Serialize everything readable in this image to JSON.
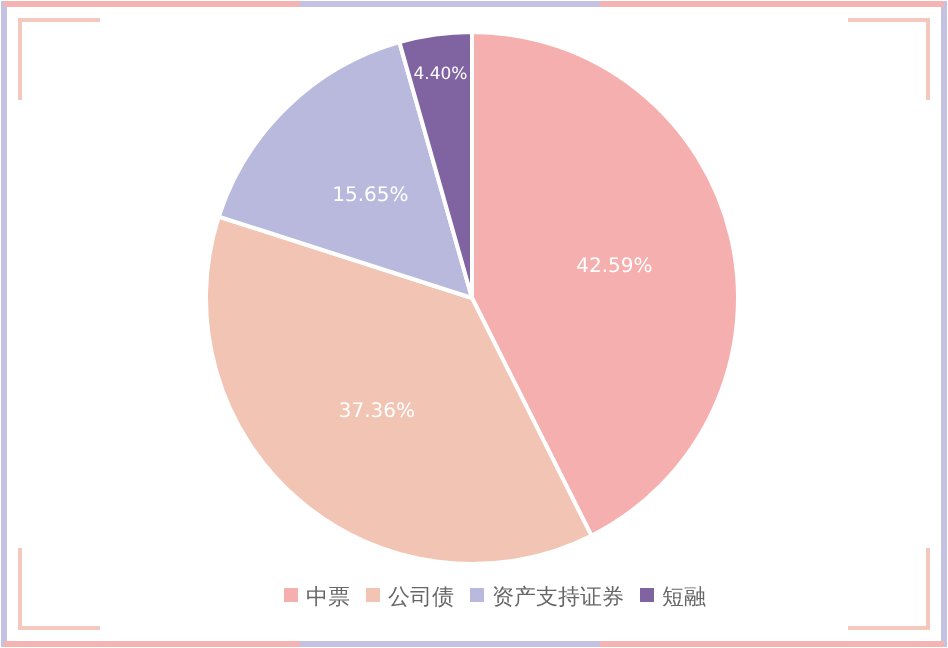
{
  "chart_data": {
    "type": "pie",
    "categories": [
      "中票",
      "公司债",
      "资产支持证券",
      "短融"
    ],
    "values": [
      42.59,
      37.36,
      15.65,
      4.4
    ],
    "colors": [
      "#f5afaf",
      "#f2c4b4",
      "#b9b9de",
      "#8064a2"
    ],
    "value_labels": [
      "42.59%",
      "37.36%",
      "15.65%",
      "4.40%"
    ],
    "legend": "bottom"
  }
}
